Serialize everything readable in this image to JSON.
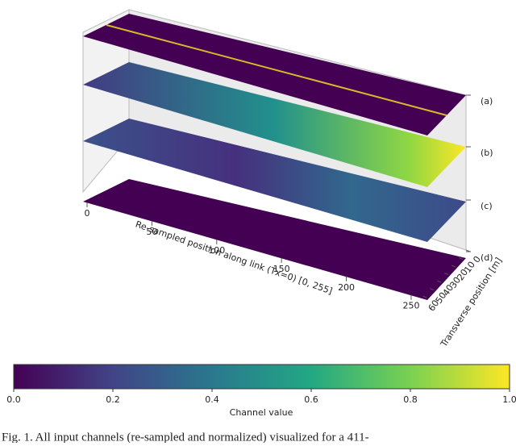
{
  "chart_data": {
    "type": "layers3d",
    "xlabel": "Re-sampled position along link (Tx=0) [0, 255]",
    "ylabel": "Transverse position [m]",
    "xlim": [
      0,
      255
    ],
    "xticks": [
      0,
      50,
      100,
      150,
      200,
      250
    ],
    "ylim": [
      0,
      65
    ],
    "yticks": [
      0,
      10,
      20,
      30,
      40,
      50,
      60
    ],
    "layers": [
      "(a)",
      "(b)",
      "(c)",
      "(d)"
    ],
    "colorbar": {
      "label": "Channel value",
      "lim": [
        0,
        1
      ],
      "ticks": [
        {
          "value": 0,
          "label": "0.0"
        },
        {
          "value": 0.2,
          "label": "0.2"
        },
        {
          "value": 0.4,
          "label": "0.4"
        },
        {
          "value": 0.6,
          "label": "0.6"
        },
        {
          "value": 0.8,
          "label": "0.8"
        },
        {
          "value": 1,
          "label": "1.0"
        }
      ],
      "colors": [
        "#440154",
        "#414487",
        "#2a788e",
        "#22a884",
        "#7ad151",
        "#fde725"
      ]
    }
  },
  "caption": "Fig. 1.  All input channels (re-sampled and normalized) visualized for a 411-"
}
